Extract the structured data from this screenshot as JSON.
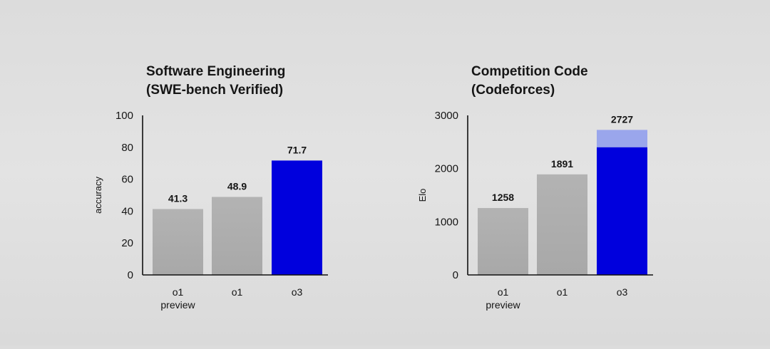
{
  "chart_data": [
    {
      "type": "bar",
      "title": "Software Engineering",
      "subtitle": "(SWE-bench Verified)",
      "ylabel": "accuracy",
      "xlabel": "",
      "ylim": [
        0,
        100
      ],
      "yticks": [
        0,
        20,
        40,
        60,
        80,
        100
      ],
      "categories": [
        [
          "o1",
          "preview"
        ],
        [
          "o1"
        ],
        [
          "o3"
        ]
      ],
      "values": [
        41.3,
        48.9,
        71.7
      ],
      "value_labels": [
        "41.3",
        "48.9",
        "71.7"
      ],
      "colors": [
        "#b0b0b0",
        "#b0b0b0",
        "#0000dd"
      ]
    },
    {
      "type": "bar",
      "title": "Competition Code",
      "subtitle": "(Codeforces)",
      "ylabel": "Elo",
      "xlabel": "",
      "ylim": [
        0,
        3000
      ],
      "yticks": [
        0,
        1000,
        2000,
        3000
      ],
      "categories": [
        [
          "o1",
          "preview"
        ],
        [
          "o1"
        ],
        [
          "o3"
        ]
      ],
      "values": [
        1258,
        1891,
        2727
      ],
      "value_labels": [
        "1258",
        "1891",
        "2727"
      ],
      "stacked_base": [
        null,
        null,
        2400
      ],
      "colors": [
        "#b0b0b0",
        "#b0b0b0",
        "#0000dd"
      ],
      "highlight_color": "#9aa6ec"
    }
  ]
}
